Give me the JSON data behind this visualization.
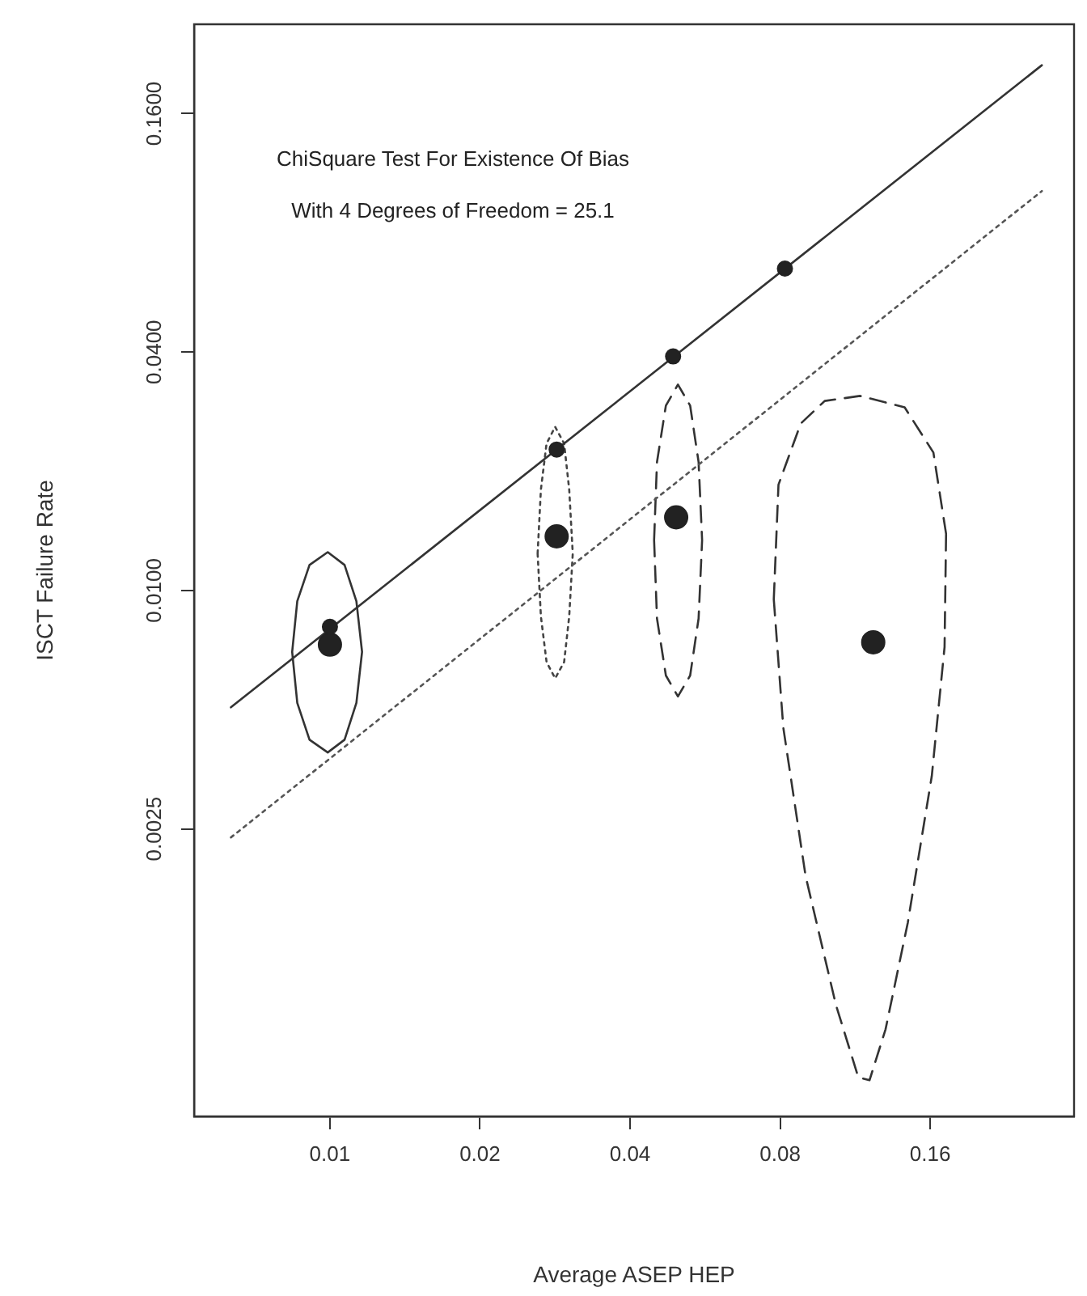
{
  "chart_data": {
    "type": "scatter",
    "xlabel": "Average ASEP HEP",
    "ylabel": "ISCT Failure Rate",
    "log": "xy",
    "grid": false,
    "legend": false,
    "marker": "circle",
    "xlim": [
      0.00534,
      0.311
    ],
    "xticks": [
      0.01,
      0.02,
      0.04,
      0.08,
      0.16
    ],
    "ylim": [
      0.00047,
      0.269
    ],
    "yticks": [
      {
        "value": 0.0025,
        "label": "0.0025"
      },
      {
        "value": 0.01,
        "label": "0.0100"
      },
      {
        "value": 0.04,
        "label": "0.0400"
      },
      {
        "value": 0.16,
        "label": "0.1600"
      }
    ],
    "annotations": [
      "ChiSquare Test For Existence Of Bias",
      "With 4 Degrees of Freedom = 25.1"
    ],
    "series": [
      {
        "type": "scatter",
        "color": "#222222",
        "x": [
          0.01,
          0.0285,
          0.0488,
          0.0818
        ],
        "values": [
          0.0081,
          0.0227,
          0.039,
          0.065
        ]
      },
      {
        "type": "scatter",
        "color": "#222222",
        "x": [
          0.01,
          0.0285,
          0.0495,
          0.123
        ],
        "values": [
          0.0073,
          0.0137,
          0.0153,
          0.0074
        ]
      },
      {
        "type": "line",
        "color": "#333333",
        "marker": "none",
        "line_style": "solid",
        "x": [
          0.00633,
          0.268
        ],
        "values": [
          0.00507,
          0.212
        ]
      },
      {
        "type": "line",
        "color": "#555555",
        "marker": "none",
        "line_style": "dotted",
        "x": [
          0.00633,
          0.268
        ],
        "values": [
          0.00238,
          0.102
        ]
      },
      {
        "type": "line",
        "color": "#333333",
        "marker": "none",
        "line_style": "solid",
        "x": [
          0.0084,
          0.0086,
          0.0091,
          0.0099,
          0.0107,
          0.0113,
          0.0116,
          null,
          0.0084,
          0.0086,
          0.0091,
          0.0099,
          0.0107,
          0.0113,
          0.0116
        ],
        "values": [
          0.007,
          0.0094,
          0.0116,
          0.0125,
          0.0116,
          0.0094,
          0.007,
          null,
          0.007,
          0.0052,
          0.0042,
          0.0039,
          0.0042,
          0.0052,
          0.007
        ]
      },
      {
        "type": "line",
        "color": "#444444",
        "marker": "none",
        "line_style": "dotted",
        "x": [
          0.0261,
          0.0265,
          0.0272,
          0.0283,
          0.0295,
          0.0302,
          0.0307,
          null,
          0.0261,
          0.0265,
          0.0272,
          0.0283,
          0.0295,
          0.0302,
          0.0307
        ],
        "values": [
          0.0124,
          0.018,
          0.0235,
          0.0259,
          0.0235,
          0.018,
          0.0124,
          null,
          0.0124,
          0.0086,
          0.0066,
          0.006,
          0.0066,
          0.0086,
          0.0124
        ]
      },
      {
        "type": "line",
        "color": "#333333",
        "marker": "none",
        "line_style": "dashed",
        "x": [
          0.0447,
          0.0453,
          0.0472,
          0.0499,
          0.0528,
          0.0549,
          0.0558,
          null,
          0.0447,
          0.0453,
          0.0472,
          0.0499,
          0.0528,
          0.0549,
          0.0558
        ],
        "values": [
          0.0134,
          0.0211,
          0.0293,
          0.0331,
          0.0293,
          0.0211,
          0.0134,
          null,
          0.0134,
          0.0085,
          0.0061,
          0.0054,
          0.0061,
          0.0085,
          0.0134
        ]
      },
      {
        "type": "line",
        "color": "#333333",
        "marker": "none",
        "line_style": "dashed",
        "x": [
          0.0777,
          0.0794,
          0.088,
          0.0983,
          0.1157,
          0.1422,
          0.1624,
          0.1722,
          null,
          0.0777,
          0.0812,
          0.09,
          0.1035,
          0.1148,
          0.1209,
          0.1302,
          0.1443,
          0.1612,
          0.171,
          0.1722
        ],
        "values": [
          0.0095,
          0.0185,
          0.0264,
          0.0301,
          0.031,
          0.029,
          0.0223,
          0.0139,
          null,
          0.0095,
          0.0045,
          0.0019,
          0.0009,
          0.00059,
          0.00058,
          0.00078,
          0.00145,
          0.0034,
          0.0072,
          0.0139
        ]
      }
    ]
  }
}
